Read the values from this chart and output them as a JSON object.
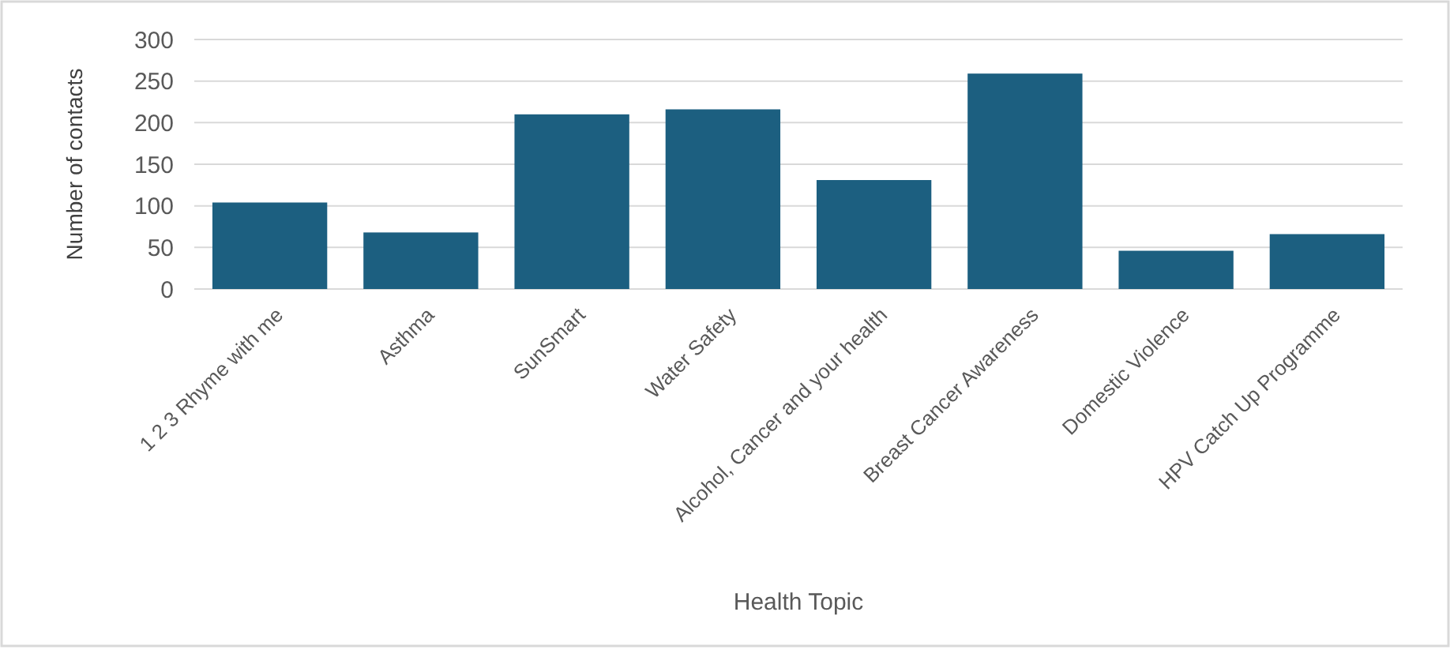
{
  "chart_data": {
    "type": "bar",
    "xlabel": "Health Topic",
    "ylabel": "Number of contacts",
    "categories": [
      "1 2 3 Rhyme with me",
      "Asthma",
      "SunSmart",
      "Water Safety",
      "Alcohol, Cancer and your health",
      "Breast Cancer Awareness",
      "Domestic Violence",
      "HPV Catch Up Programme"
    ],
    "values": [
      104,
      68,
      210,
      216,
      131,
      259,
      46,
      66
    ],
    "color": "#1c5f80",
    "ylim": [
      0,
      300
    ],
    "yticks": [
      0,
      50,
      100,
      150,
      200,
      250,
      300
    ],
    "grid": "y"
  }
}
